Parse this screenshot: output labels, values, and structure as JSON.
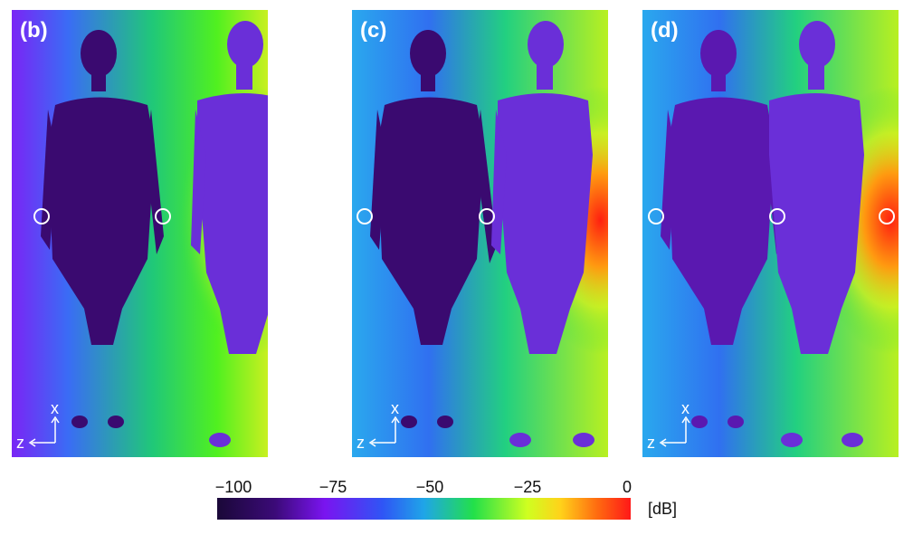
{
  "panels": [
    {
      "label": "(b)"
    },
    {
      "label": "(c)"
    },
    {
      "label": "(d)"
    }
  ],
  "axes": {
    "x_label": "x",
    "z_label": "z"
  },
  "colorbar": {
    "ticks": [
      "−100",
      "−75",
      "−50",
      "−25",
      "0"
    ],
    "unit": "[dB]",
    "colors": [
      "#1a0838",
      "#3b0a78",
      "#7a14f0",
      "#2f55f5",
      "#22e04a",
      "#cfff20",
      "#ffd21a",
      "#ff6a10",
      "#ff1818"
    ]
  }
}
